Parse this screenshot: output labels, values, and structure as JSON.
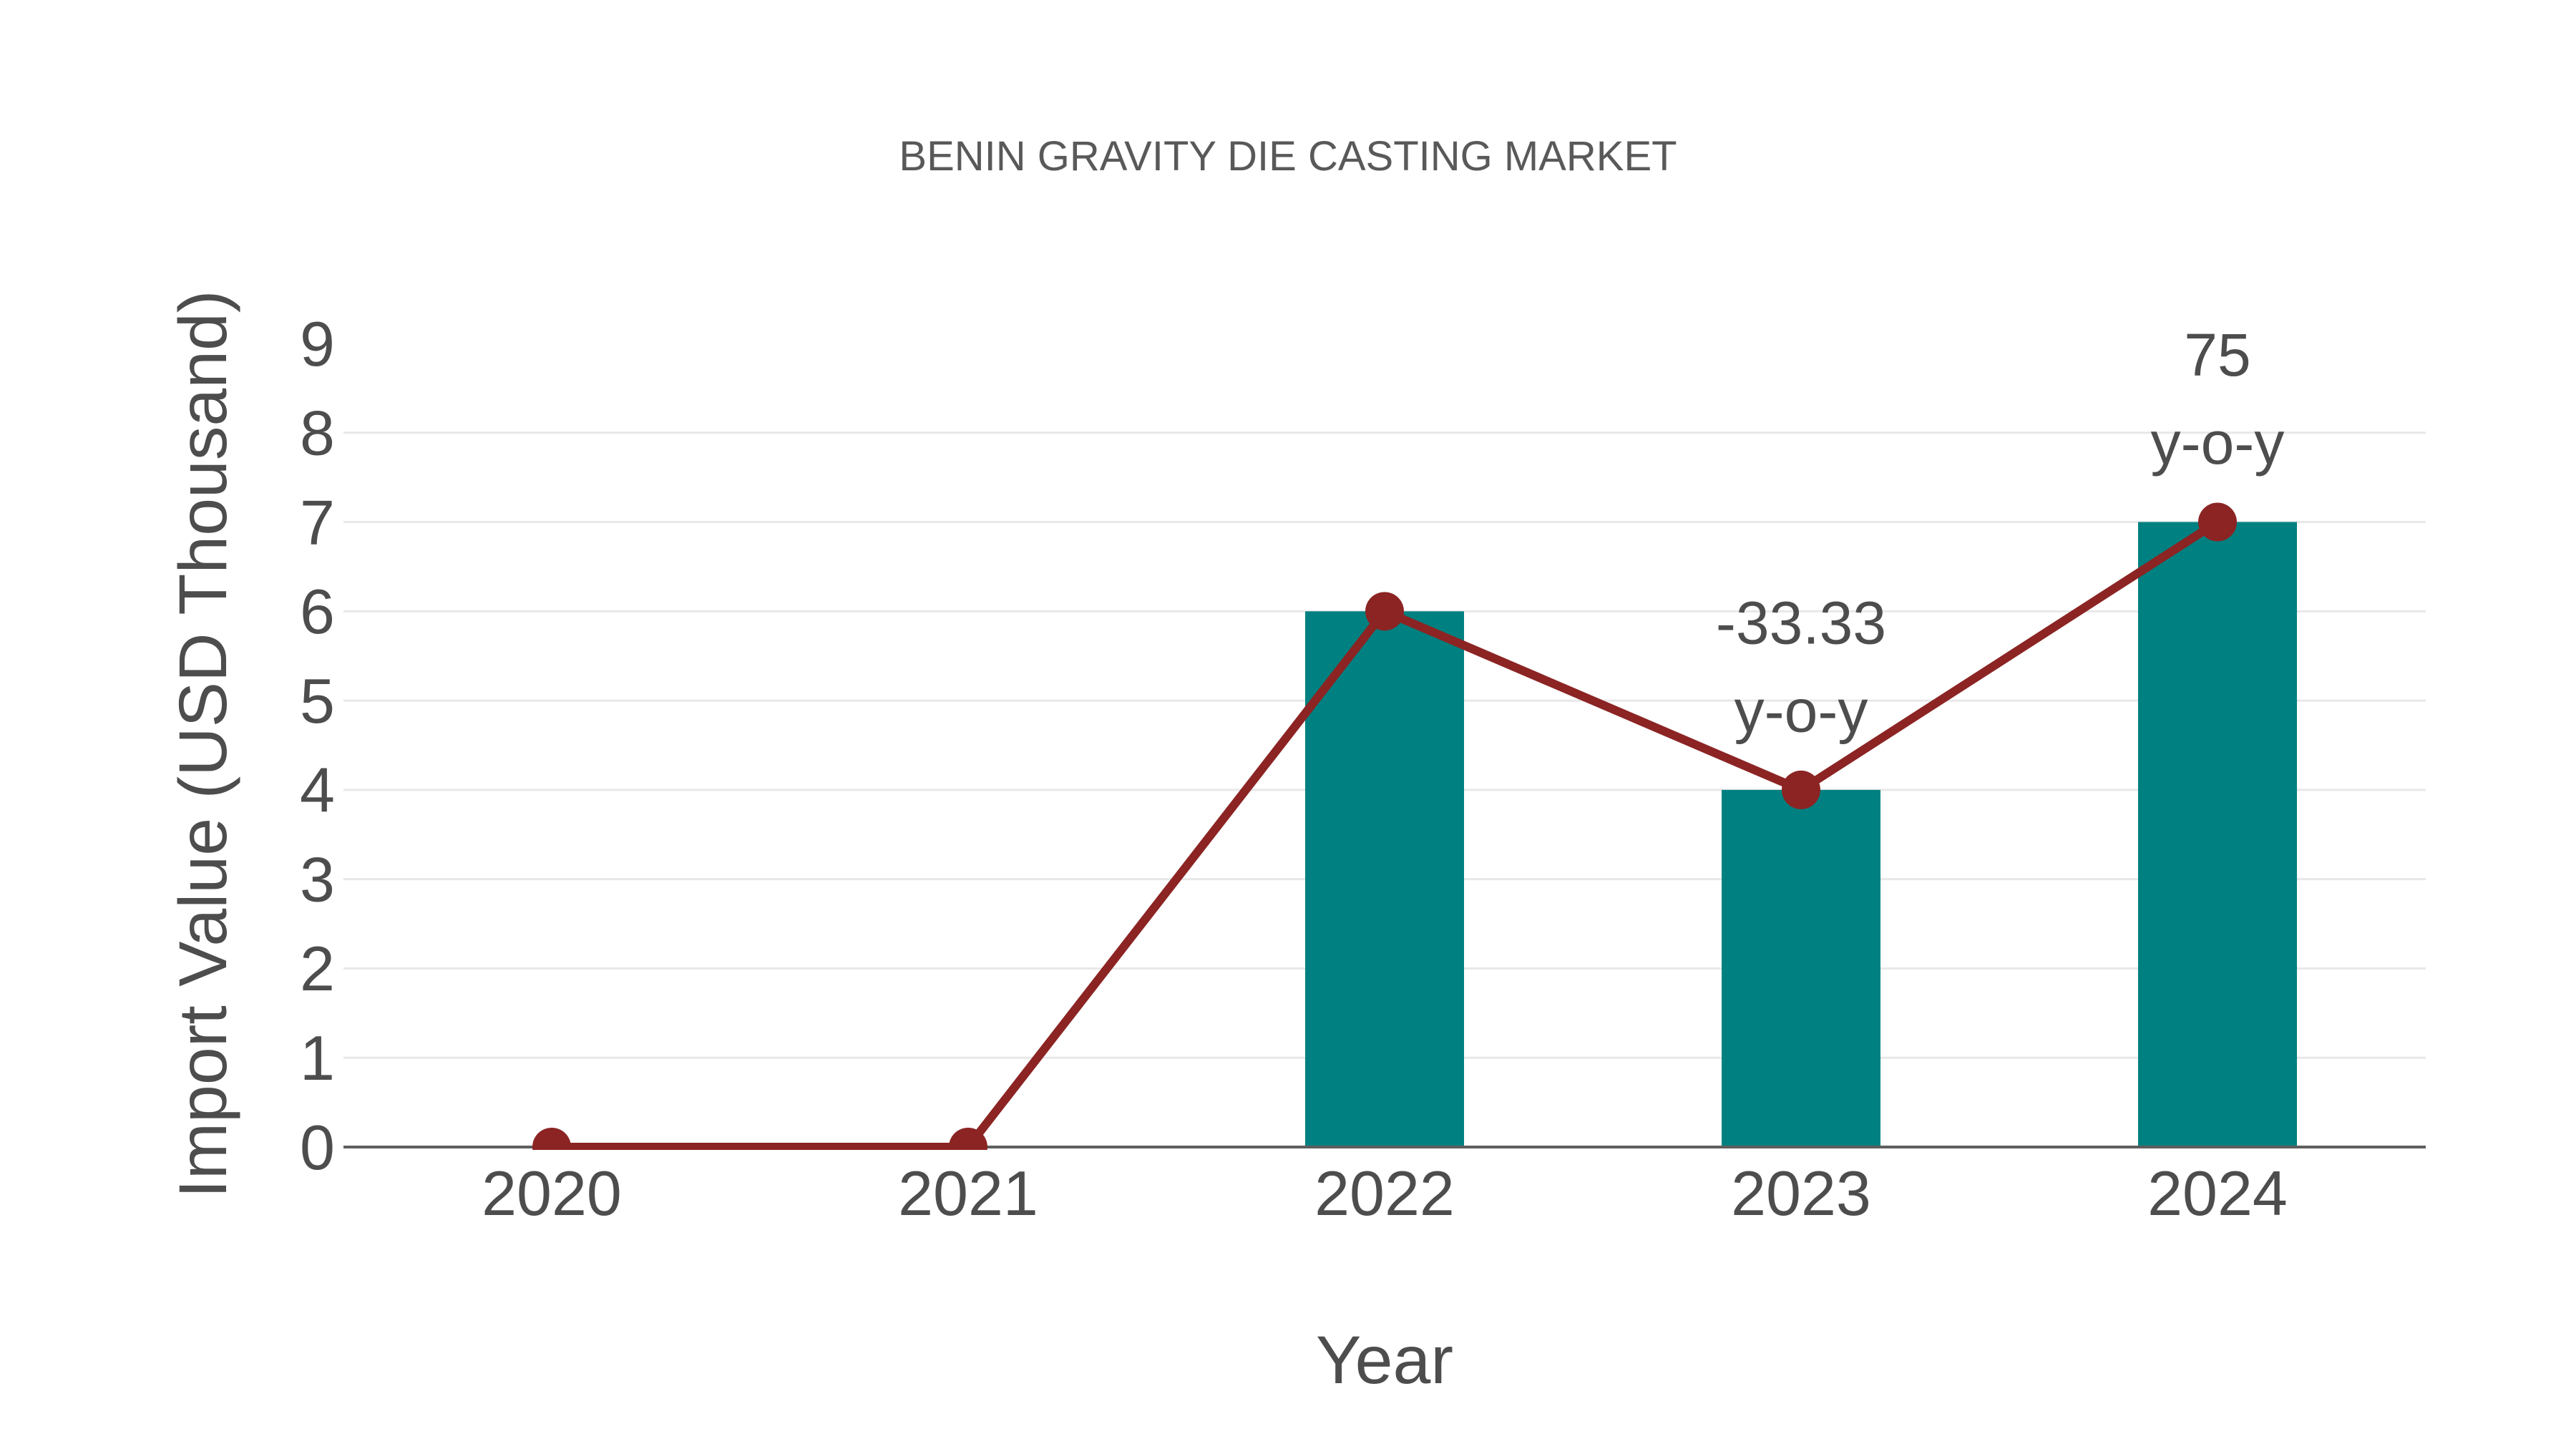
{
  "figure": {
    "title": "BENIN GRAVITY DIE CASTING MARKET"
  },
  "chart_data": {
    "type": "bar+line",
    "categories": [
      "2020",
      "2021",
      "2022",
      "2023",
      "2024"
    ],
    "series": [
      {
        "name": "Import Value bars",
        "type": "bar",
        "values": [
          0,
          0,
          6,
          4,
          7
        ],
        "color": "#008080"
      },
      {
        "name": "Import Value line",
        "type": "line",
        "values": [
          0,
          0,
          6,
          4,
          7
        ],
        "color": "#8b2423"
      }
    ],
    "annotations": [
      {
        "category": "2023",
        "lines": [
          "-33.33",
          "y-o-y"
        ]
      },
      {
        "category": "2024",
        "lines": [
          "75",
          "y-o-y"
        ]
      }
    ],
    "title": "BENIN GRAVITY DIE CASTING MARKET",
    "xlabel": "Year",
    "ylabel": "Import Value (USD Thousand)",
    "ylim": [
      0,
      9
    ],
    "yticks": [
      0,
      1,
      2,
      3,
      4,
      5,
      6,
      7,
      8,
      9
    ],
    "gridline_values": [
      1,
      2,
      3,
      4,
      5,
      6,
      7,
      8
    ],
    "grid": true,
    "legend": "none"
  },
  "colors": {
    "bar": "#008080",
    "line": "#8b2423",
    "grid": "#e8e8e8",
    "axis_line": "#5e5e5e",
    "tick_text": "#4d4d4d",
    "annotation_text": "#4d4d4d",
    "title_text": "#595959",
    "background": "#ffffff"
  }
}
